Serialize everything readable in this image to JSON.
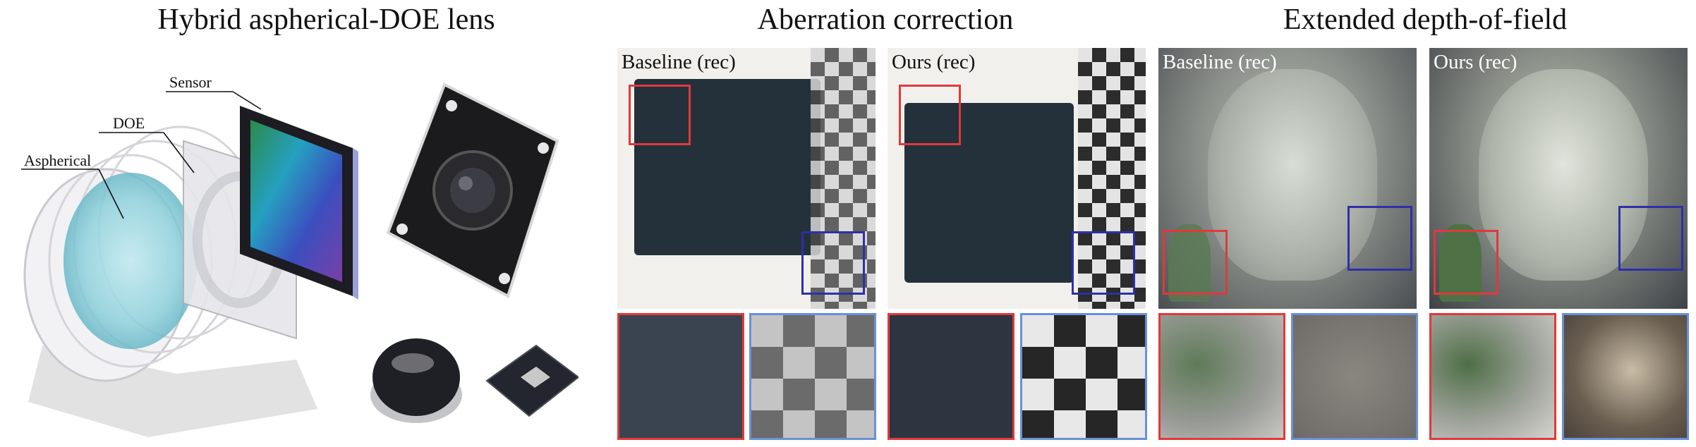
{
  "sections": {
    "lens": "Hybrid aspherical-DOE lens",
    "aberration": "Aberration correction",
    "edof": "Extended depth-of-field"
  },
  "lens_labels": {
    "sensor": "Sensor",
    "doe": "DOE",
    "aspherical": "Aspherical"
  },
  "panels": {
    "ab_baseline": "Baseline (rec)",
    "ab_ours": "Ours (rec)",
    "edof_baseline": "Baseline (rec)",
    "edof_ours": "Ours (rec)"
  },
  "colors": {
    "red_box": "#e0393b",
    "blue_box": "#2f2fa8",
    "zoom_blue": "#6a90d8"
  }
}
